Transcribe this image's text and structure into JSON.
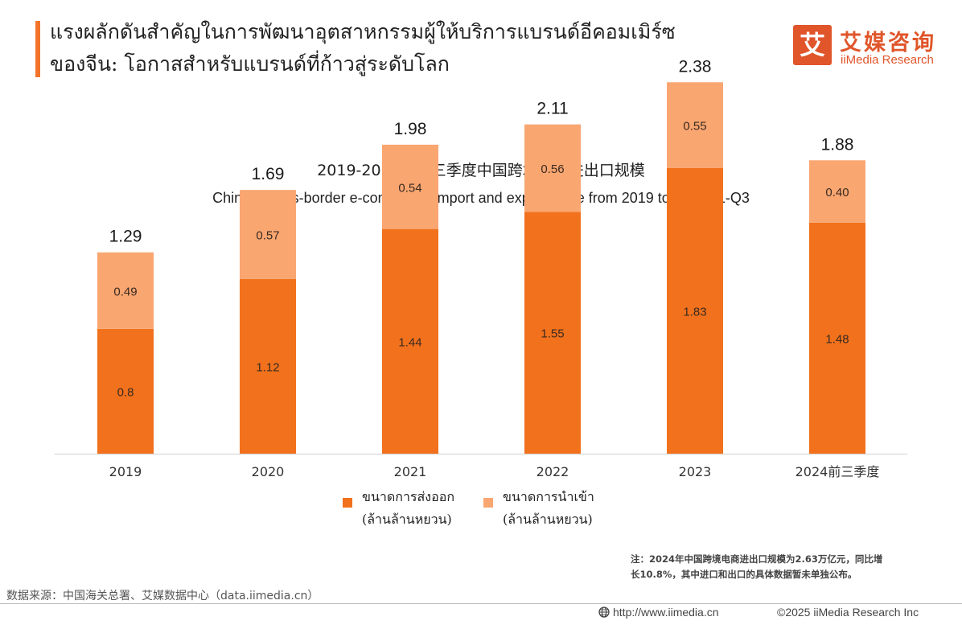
{
  "page": {
    "title_line1": "แรงผลักดันสำคัญในการพัฒนาอุตสาหกรรมผู้ให้บริการแบรนด์อีคอมเมิร์ซ",
    "title_line2": "ของจีน: โอกาสสำหรับแบรนด์ที่ก้าวสู่ระดับโลก"
  },
  "logo": {
    "mark_char": "艾",
    "cn": "艾媒咨询",
    "en": "iiMedia Research"
  },
  "chart_data": {
    "type": "bar",
    "stacked": true,
    "title": "2019-2024年前三季度中国跨境电商进出口规模",
    "subtitle": "China's cross-border e-commerce import and export scale from 2019 to 2024Q1-Q3",
    "categories": [
      "2019",
      "2020",
      "2021",
      "2022",
      "2023",
      "2024前三季度"
    ],
    "series": [
      {
        "name": "ขนาดการส่งออก (ล้านล้านหยวน)",
        "values": [
          0.8,
          1.12,
          1.44,
          1.55,
          1.83,
          1.48
        ],
        "color": "#f2711c"
      },
      {
        "name": "ขนาดการนำเข้า (ล้านล้านหยวน)",
        "values": [
          0.49,
          0.57,
          0.54,
          0.56,
          0.55,
          0.4
        ],
        "color": "#f9a671"
      }
    ],
    "value_labels": {
      "export": [
        "0.8",
        "1.12",
        "1.44",
        "1.55",
        "1.83",
        "1.48"
      ],
      "import": [
        "0.49",
        "0.57",
        "0.54",
        "0.56",
        "0.55",
        "0.40"
      ]
    },
    "totals": [
      "1.29",
      "1.69",
      "1.98",
      "2.11",
      "2.38",
      "1.88"
    ],
    "xlabel": "",
    "ylabel": "",
    "ylim": [
      0,
      2.5
    ],
    "grid": false,
    "legend_position": "bottom-center"
  },
  "legend": {
    "export_line1": "ขนาดการส่งออก",
    "export_line2": "(ล้านล้านหยวน)",
    "import_line1": "ขนาดการนำเข้า",
    "import_line2": "(ล้านล้านหยวน)"
  },
  "footnote": {
    "line1": "注：2024年中国跨境电商进出口规模为2.63万亿元，同比增",
    "line2": "长10.8%，其中进口和出口的具体数据暂未单独公布。"
  },
  "source": "数据来源：中国海关总署、艾媒数据中心（data.iimedia.cn）",
  "footer": {
    "url": "http://www.iimedia.cn",
    "copyright": "©2025  iiMedia Research  Inc"
  },
  "colors": {
    "accent": "#f2742a",
    "brand": "#e0552a",
    "export": "#f2711c",
    "import": "#f9a671"
  },
  "icons": {
    "footer_globe": "globe-icon"
  }
}
